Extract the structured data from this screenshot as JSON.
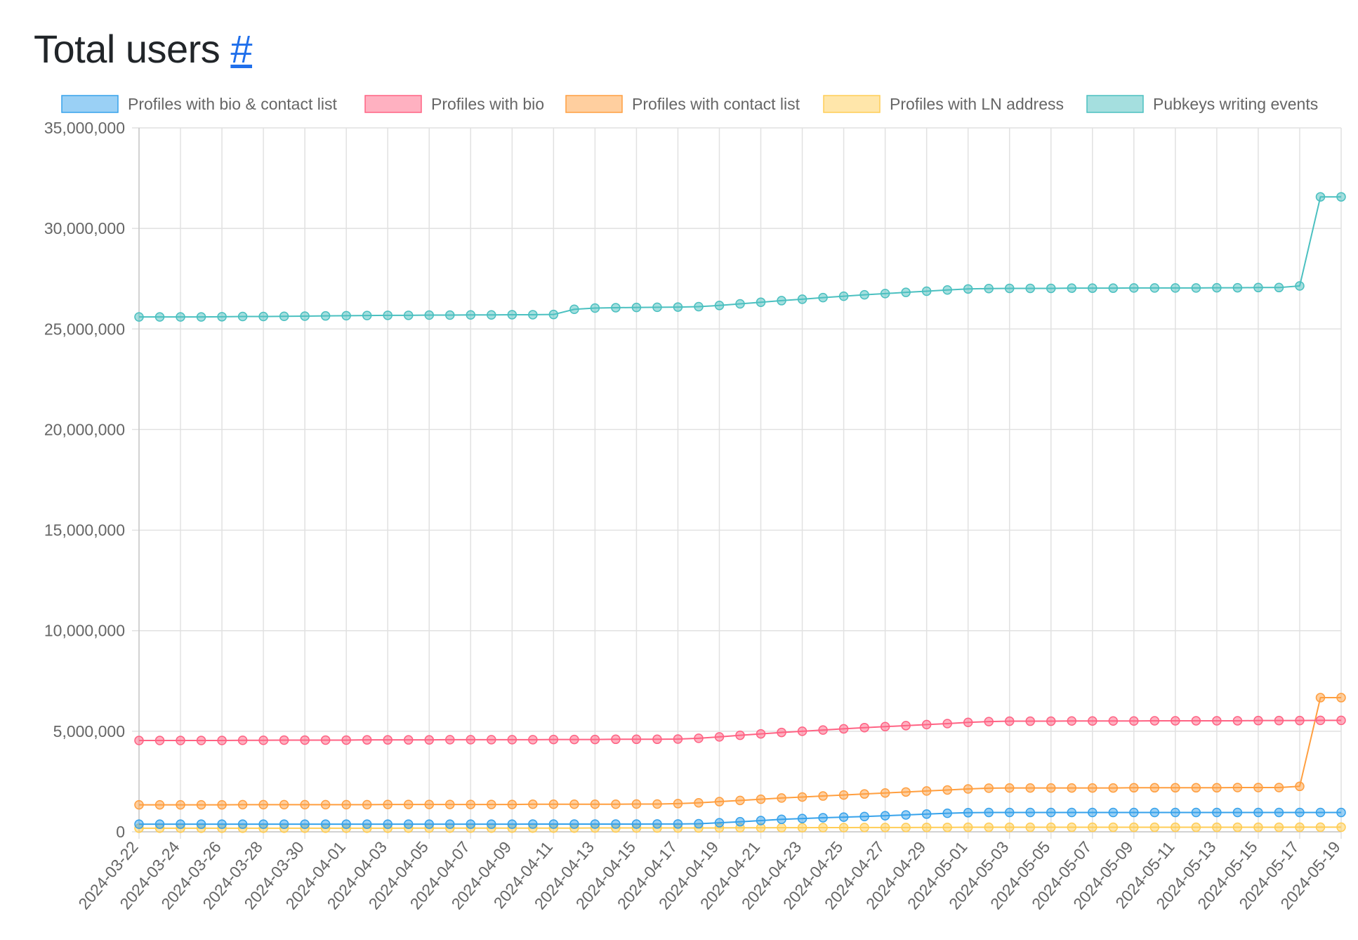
{
  "page": {
    "title": "Total users",
    "anchor_label": "#"
  },
  "chart_data": {
    "type": "line",
    "title": "",
    "xlabel": "",
    "ylabel": "",
    "ylim": [
      0,
      35000000
    ],
    "yticks": [
      0,
      5000000,
      10000000,
      15000000,
      20000000,
      25000000,
      30000000,
      35000000
    ],
    "ytick_labels": [
      "0",
      "5,000,000",
      "10,000,000",
      "15,000,000",
      "20,000,000",
      "25,000,000",
      "30,000,000",
      "35,000,000"
    ],
    "grid": true,
    "legend_position": "top",
    "x_start": "2024-03-22",
    "x_end": "2024-05-19",
    "x": [
      "2024-03-22",
      "2024-03-23",
      "2024-03-24",
      "2024-03-25",
      "2024-03-26",
      "2024-03-27",
      "2024-03-28",
      "2024-03-29",
      "2024-03-30",
      "2024-03-31",
      "2024-04-01",
      "2024-04-02",
      "2024-04-03",
      "2024-04-04",
      "2024-04-05",
      "2024-04-06",
      "2024-04-07",
      "2024-04-08",
      "2024-04-09",
      "2024-04-10",
      "2024-04-11",
      "2024-04-12",
      "2024-04-13",
      "2024-04-14",
      "2024-04-15",
      "2024-04-16",
      "2024-04-17",
      "2024-04-18",
      "2024-04-19",
      "2024-04-20",
      "2024-04-21",
      "2024-04-22",
      "2024-04-23",
      "2024-04-24",
      "2024-04-25",
      "2024-04-26",
      "2024-04-27",
      "2024-04-28",
      "2024-04-29",
      "2024-04-30",
      "2024-05-01",
      "2024-05-02",
      "2024-05-03",
      "2024-05-04",
      "2024-05-05",
      "2024-05-06",
      "2024-05-07",
      "2024-05-08",
      "2024-05-09",
      "2024-05-10",
      "2024-05-11",
      "2024-05-12",
      "2024-05-13",
      "2024-05-14",
      "2024-05-15",
      "2024-05-16",
      "2024-05-17",
      "2024-05-18",
      "2024-05-19"
    ],
    "x_tick_labels": [
      "2024-03-22",
      "2024-03-24",
      "2024-03-26",
      "2024-03-28",
      "2024-03-30",
      "2024-04-01",
      "2024-04-03",
      "2024-04-05",
      "2024-04-07",
      "2024-04-09",
      "2024-04-11",
      "2024-04-13",
      "2024-04-15",
      "2024-04-17",
      "2024-04-19",
      "2024-04-21",
      "2024-04-23",
      "2024-04-25",
      "2024-04-27",
      "2024-04-29",
      "2024-05-01",
      "2024-05-03",
      "2024-05-05",
      "2024-05-07",
      "2024-05-09",
      "2024-05-11",
      "2024-05-13",
      "2024-05-15",
      "2024-05-17",
      "2024-05-19"
    ],
    "series": [
      {
        "name": "Profiles with bio & contact list",
        "color": "#36a2eb",
        "values": [
          380000,
          380000,
          380000,
          380000,
          380000,
          380000,
          380000,
          380000,
          380000,
          380000,
          380000,
          380000,
          380000,
          380000,
          380000,
          380000,
          380000,
          380000,
          380000,
          385000,
          385000,
          385000,
          385000,
          385000,
          385000,
          390000,
          390000,
          400000,
          450000,
          500000,
          560000,
          620000,
          660000,
          700000,
          730000,
          760000,
          800000,
          840000,
          880000,
          920000,
          950000,
          960000,
          960000,
          960000,
          960000,
          960000,
          960000,
          960000,
          960000,
          960000,
          960000,
          960000,
          960000,
          960000,
          960000,
          960000,
          960000,
          960000,
          960000
        ]
      },
      {
        "name": "Profiles with bio",
        "color": "#ff6384",
        "values": [
          4540000,
          4540000,
          4540000,
          4540000,
          4540000,
          4550000,
          4550000,
          4560000,
          4560000,
          4560000,
          4560000,
          4570000,
          4570000,
          4570000,
          4570000,
          4580000,
          4580000,
          4580000,
          4580000,
          4580000,
          4590000,
          4590000,
          4590000,
          4600000,
          4600000,
          4600000,
          4610000,
          4650000,
          4720000,
          4800000,
          4870000,
          4940000,
          5000000,
          5060000,
          5120000,
          5180000,
          5230000,
          5280000,
          5330000,
          5380000,
          5440000,
          5480000,
          5500000,
          5500000,
          5500000,
          5510000,
          5510000,
          5510000,
          5510000,
          5520000,
          5520000,
          5520000,
          5520000,
          5520000,
          5530000,
          5530000,
          5530000,
          5540000,
          5540000
        ]
      },
      {
        "name": "Profiles with contact list",
        "color": "#ff9f40",
        "values": [
          1340000,
          1340000,
          1340000,
          1340000,
          1340000,
          1350000,
          1350000,
          1350000,
          1350000,
          1350000,
          1350000,
          1350000,
          1360000,
          1360000,
          1360000,
          1360000,
          1360000,
          1360000,
          1360000,
          1370000,
          1370000,
          1370000,
          1370000,
          1370000,
          1380000,
          1380000,
          1400000,
          1440000,
          1500000,
          1560000,
          1620000,
          1680000,
          1730000,
          1780000,
          1830000,
          1880000,
          1930000,
          1980000,
          2030000,
          2080000,
          2130000,
          2170000,
          2180000,
          2180000,
          2180000,
          2180000,
          2180000,
          2180000,
          2190000,
          2190000,
          2190000,
          2190000,
          2190000,
          2200000,
          2200000,
          2200000,
          2260000,
          6670000,
          6670000
        ]
      },
      {
        "name": "Profiles with LN address",
        "color": "#ffcd56",
        "values": [
          180000,
          180000,
          180000,
          180000,
          180000,
          180000,
          180000,
          180000,
          180000,
          180000,
          180000,
          180000,
          180000,
          185000,
          185000,
          185000,
          185000,
          185000,
          185000,
          185000,
          185000,
          185000,
          190000,
          190000,
          190000,
          190000,
          190000,
          190000,
          195000,
          200000,
          200000,
          205000,
          205000,
          210000,
          210000,
          215000,
          215000,
          215000,
          220000,
          220000,
          225000,
          225000,
          225000,
          225000,
          225000,
          225000,
          225000,
          225000,
          225000,
          225000,
          225000,
          225000,
          225000,
          225000,
          225000,
          225000,
          230000,
          230000,
          230000
        ]
      },
      {
        "name": "Pubkeys writing events",
        "color": "#4bc0c0",
        "values": [
          25600000,
          25600000,
          25600000,
          25600000,
          25610000,
          25620000,
          25620000,
          25630000,
          25640000,
          25650000,
          25660000,
          25670000,
          25680000,
          25680000,
          25690000,
          25690000,
          25700000,
          25700000,
          25710000,
          25710000,
          25720000,
          25980000,
          26040000,
          26060000,
          26070000,
          26080000,
          26090000,
          26110000,
          26170000,
          26250000,
          26330000,
          26410000,
          26480000,
          26560000,
          26630000,
          26700000,
          26760000,
          26820000,
          26880000,
          26940000,
          26990000,
          27010000,
          27020000,
          27020000,
          27020000,
          27030000,
          27030000,
          27030000,
          27040000,
          27040000,
          27040000,
          27040000,
          27050000,
          27050000,
          27060000,
          27060000,
          27140000,
          31570000,
          31570000
        ]
      }
    ]
  }
}
